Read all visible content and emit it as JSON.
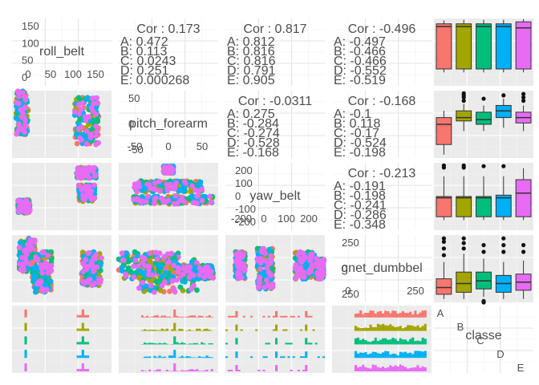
{
  "chart_data": {
    "type": "scatter-matrix",
    "variables": [
      "roll_belt",
      "pitch_forearm",
      "yaw_belt",
      "gnet_dumbbel",
      "classe"
    ],
    "classes": [
      "A",
      "B",
      "C",
      "D",
      "E"
    ],
    "class_colors": [
      "#F8766D",
      "#A3A500",
      "#00BF7D",
      "#00B0F6",
      "#E76BF3"
    ],
    "correlations": [
      {
        "pair": [
          "roll_belt",
          "pitch_forearm"
        ],
        "overall": "Cor : 0.173",
        "by_class": [
          "A: 0.472",
          "B: 0.113",
          "C: 0.0243",
          "D: 0.251",
          "E: 0.000268"
        ]
      },
      {
        "pair": [
          "roll_belt",
          "yaw_belt"
        ],
        "overall": "Cor : 0.817",
        "by_class": [
          "A: 0.812",
          "B: 0.816",
          "C: 0.816",
          "D: 0.791",
          "E: 0.905"
        ]
      },
      {
        "pair": [
          "roll_belt",
          "gnet_dumbbel"
        ],
        "overall": "Cor : -0.496",
        "by_class": [
          "A: -0.497",
          "B: -0.466",
          "C: -0.466",
          "D: -0.552",
          "E: -0.519"
        ]
      },
      {
        "pair": [
          "pitch_forearm",
          "yaw_belt"
        ],
        "overall": "Cor : -0.0311",
        "by_class": [
          "A: 0.275",
          "B: -0.284",
          "C: -0.274",
          "D: -0.528",
          "E: -0.168"
        ]
      },
      {
        "pair": [
          "pitch_forearm",
          "gnet_dumbbel"
        ],
        "overall": "Cor : -0.168",
        "by_class": [
          "A: -0.1",
          "B: 0.118",
          "C: -0.17",
          "D: -0.524",
          "E: -0.198"
        ]
      },
      {
        "pair": [
          "yaw_belt",
          "gnet_dumbbel"
        ],
        "overall": "Cor : -0.213",
        "by_class": [
          "A: -0.191",
          "B: -0.198",
          "C: -0.241",
          "D: -0.286",
          "E: -0.348"
        ]
      }
    ],
    "diagonal_ticks": {
      "roll_belt": {
        "y_ticks": [
          "150",
          "100",
          "50",
          "0"
        ],
        "x_ticks": [
          "0",
          "50",
          "100",
          "150"
        ]
      },
      "pitch_forearm": {
        "y_ticks": [
          "50",
          "0",
          "-50"
        ],
        "x_ticks": [
          "-50",
          "0",
          "50"
        ]
      },
      "yaw_belt": {
        "y_ticks": [
          "200",
          "100",
          "0",
          "-100",
          "-200"
        ],
        "x_ticks": [
          "-200",
          "0",
          "100",
          "200"
        ]
      },
      "gnet_dumbbel": {
        "y_ticks": [
          "250",
          "0",
          "250"
        ],
        "x_ticks": [
          "0",
          "250"
        ]
      },
      "classe": {
        "letters": [
          "A",
          "B",
          "C",
          "D",
          "E"
        ]
      }
    },
    "boxplots": [
      {
        "variable": "roll_belt",
        "classes": [
          {
            "q1": 0.25,
            "median": 0.88,
            "q3": 0.92,
            "min": 0.2,
            "max": 0.97
          },
          {
            "q1": 0.25,
            "median": 0.88,
            "q3": 0.92,
            "min": 0.2,
            "max": 0.98
          },
          {
            "q1": 0.25,
            "median": 0.88,
            "q3": 0.92,
            "min": 0.2,
            "max": 0.98
          },
          {
            "q1": 0.25,
            "median": 0.88,
            "q3": 0.92,
            "min": 0.2,
            "max": 0.98
          },
          {
            "q1": 0.25,
            "median": 0.86,
            "q3": 0.95,
            "min": 0.2,
            "max": 0.99
          }
        ]
      },
      {
        "variable": "pitch_forearm",
        "classes": [
          {
            "q1": 0.2,
            "median": 0.5,
            "q3": 0.6,
            "min": 0.05,
            "max": 0.7,
            "outliers_high": []
          },
          {
            "q1": 0.55,
            "median": 0.6,
            "q3": 0.7,
            "min": 0.4,
            "max": 0.8,
            "outliers_high": [
              0.85,
              0.9,
              0.93,
              0.96
            ]
          },
          {
            "q1": 0.5,
            "median": 0.57,
            "q3": 0.68,
            "min": 0.4,
            "max": 0.78,
            "outliers_high": [
              0.88
            ]
          },
          {
            "q1": 0.6,
            "median": 0.7,
            "q3": 0.78,
            "min": 0.45,
            "max": 0.88,
            "outliers_high": [
              0.93
            ]
          },
          {
            "q1": 0.52,
            "median": 0.6,
            "q3": 0.68,
            "min": 0.4,
            "max": 0.78,
            "outliers_high": [
              0.85,
              0.9,
              0.95
            ]
          }
        ]
      },
      {
        "variable": "yaw_belt",
        "classes": [
          {
            "q1": 0.2,
            "median": 0.48,
            "q3": 0.5,
            "min": 0.15,
            "max": 0.8,
            "outliers_high": [
              0.93,
              0.96
            ]
          },
          {
            "q1": 0.2,
            "median": 0.48,
            "q3": 0.5,
            "min": 0.15,
            "max": 0.8,
            "outliers_high": [
              0.93,
              0.96
            ]
          },
          {
            "q1": 0.2,
            "median": 0.48,
            "q3": 0.5,
            "min": 0.15,
            "max": 0.8,
            "outliers_high": [
              0.95
            ]
          },
          {
            "q1": 0.2,
            "median": 0.48,
            "q3": 0.52,
            "min": 0.15,
            "max": 0.8,
            "outliers_high": [
              0.95
            ]
          },
          {
            "q1": 0.2,
            "median": 0.55,
            "q3": 0.75,
            "min": 0.15,
            "max": 0.92,
            "outliers_high": []
          }
        ]
      },
      {
        "variable": "gnet_dumbbel",
        "classes": [
          {
            "q1": 0.12,
            "median": 0.22,
            "q3": 0.35,
            "min": 0.05,
            "max": 0.6,
            "outliers_high": [
              0.7,
              0.8,
              0.9,
              0.95
            ]
          },
          {
            "q1": 0.15,
            "median": 0.28,
            "q3": 0.45,
            "min": 0.05,
            "max": 0.72,
            "outliers_high": [
              0.8,
              0.88,
              0.95
            ]
          },
          {
            "q1": 0.2,
            "median": 0.32,
            "q3": 0.45,
            "min": 0.08,
            "max": 0.65,
            "outliers_high": [
              0.75,
              0.85
            ],
            "outliers_low": [
              0.02,
              -0.05
            ]
          },
          {
            "q1": 0.15,
            "median": 0.28,
            "q3": 0.4,
            "min": 0.05,
            "max": 0.6,
            "outliers_high": [
              0.75,
              0.85,
              0.95
            ]
          },
          {
            "q1": 0.18,
            "median": 0.3,
            "q3": 0.42,
            "min": 0.05,
            "max": 0.62,
            "outliers_high": [
              0.75,
              0.85
            ]
          }
        ]
      }
    ]
  }
}
